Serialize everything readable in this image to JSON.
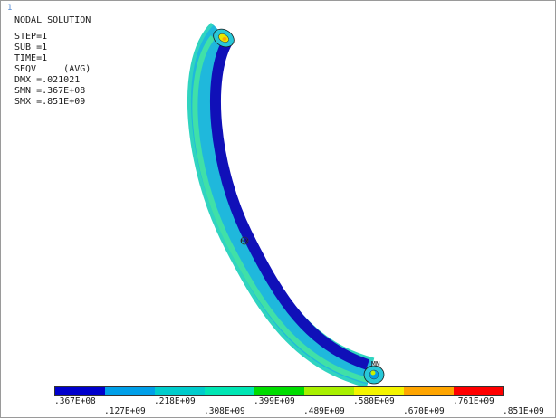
{
  "window_number": "1",
  "info": {
    "title": "NODAL SOLUTION",
    "step": "STEP=1",
    "sub": "SUB =1",
    "time": "TIME=1",
    "seqv": "SEQV     (AVG)",
    "dmx": "DMX =.021021",
    "smn": "SMN =.367E+08",
    "smx": "SMX =.851E+09"
  },
  "markers": {
    "mn": "MN",
    "mx": "MX"
  },
  "legend": {
    "colors": [
      "#0000cc",
      "#009fe8",
      "#00cccc",
      "#00e6b4",
      "#00dd00",
      "#a8f000",
      "#f4f400",
      "#ffa500",
      "#ff0000"
    ],
    "labels_top": [
      ".367E+08",
      ".218E+09",
      ".399E+09",
      ".580E+09",
      ".761E+09"
    ],
    "labels_bottom": [
      ".127E+09",
      ".308E+09",
      ".489E+09",
      ".670E+09",
      ".851E+09"
    ]
  }
}
